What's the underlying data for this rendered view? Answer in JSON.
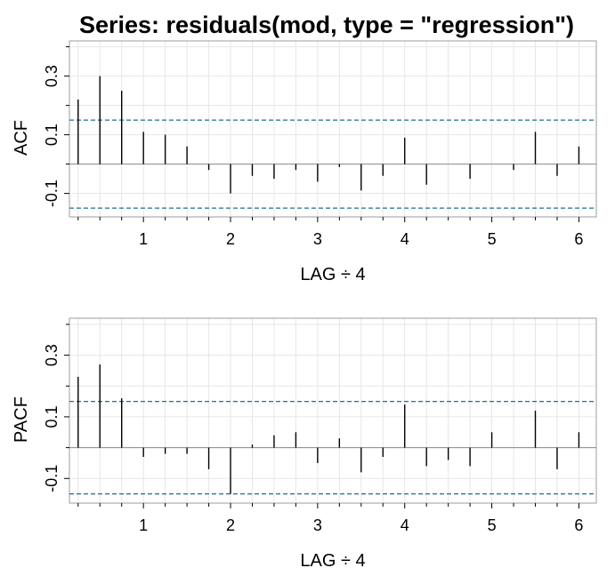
{
  "title": "Series:  residuals(mod, type = \"regression\")",
  "colors": {
    "background": "#ffffff",
    "grid": "#e6e6e6",
    "frame": "#9e9e9e",
    "zero_line": "#8a8a8a",
    "bar": "#000000",
    "confidence_line": "#1f6e8c"
  },
  "chart_data": [
    {
      "type": "bar",
      "ylabel": "ACF",
      "xlabel": "LAG ÷ 4",
      "xlim": [
        0.15,
        6.2
      ],
      "ylim": [
        -0.18,
        0.42
      ],
      "x_ticks": [
        "1",
        "2",
        "3",
        "4",
        "5",
        "6"
      ],
      "y_ticks": [
        "-0.1",
        "0.1",
        "0.3"
      ],
      "x_minor_ticks": [
        0.25,
        0.5,
        0.75,
        1.25,
        1.5,
        1.75,
        2.25,
        2.5,
        2.75,
        3.25,
        3.5,
        3.75,
        4.25,
        4.5,
        4.75,
        5.25,
        5.5,
        5.75
      ],
      "y_minor_ticks": [
        0.0,
        0.2,
        0.4
      ],
      "grid": true,
      "confidence_band": [
        -0.15,
        0.15
      ],
      "x": [
        0.25,
        0.5,
        0.75,
        1.0,
        1.25,
        1.5,
        1.75,
        2.0,
        2.25,
        2.5,
        2.75,
        3.0,
        3.25,
        3.5,
        3.75,
        4.0,
        4.25,
        4.5,
        4.75,
        5.0,
        5.25,
        5.5,
        5.75,
        6.0
      ],
      "values": [
        0.22,
        0.3,
        0.25,
        0.11,
        0.1,
        0.06,
        -0.02,
        -0.1,
        -0.04,
        -0.05,
        -0.02,
        -0.06,
        -0.01,
        -0.09,
        -0.04,
        0.09,
        -0.07,
        0.0,
        -0.05,
        0.0,
        -0.02,
        0.11,
        -0.04,
        0.06
      ]
    },
    {
      "type": "bar",
      "ylabel": "PACF",
      "xlabel": "LAG ÷ 4",
      "xlim": [
        0.15,
        6.2
      ],
      "ylim": [
        -0.18,
        0.42
      ],
      "x_ticks": [
        "1",
        "2",
        "3",
        "4",
        "5",
        "6"
      ],
      "y_ticks": [
        "-0.1",
        "0.1",
        "0.3"
      ],
      "x_minor_ticks": [
        0.25,
        0.5,
        0.75,
        1.25,
        1.5,
        1.75,
        2.25,
        2.5,
        2.75,
        3.25,
        3.5,
        3.75,
        4.25,
        4.5,
        4.75,
        5.25,
        5.5,
        5.75
      ],
      "y_minor_ticks": [
        0.0,
        0.2,
        0.4
      ],
      "grid": true,
      "confidence_band": [
        -0.15,
        0.15
      ],
      "x": [
        0.25,
        0.5,
        0.75,
        1.0,
        1.25,
        1.5,
        1.75,
        2.0,
        2.25,
        2.5,
        2.75,
        3.0,
        3.25,
        3.5,
        3.75,
        4.0,
        4.25,
        4.5,
        4.75,
        5.0,
        5.25,
        5.5,
        5.75,
        6.0
      ],
      "values": [
        0.23,
        0.27,
        0.16,
        -0.03,
        -0.02,
        -0.02,
        -0.07,
        -0.15,
        0.01,
        0.04,
        0.05,
        -0.05,
        0.03,
        -0.08,
        -0.03,
        0.14,
        -0.06,
        -0.04,
        -0.06,
        0.05,
        0.0,
        0.12,
        -0.07,
        0.05
      ]
    }
  ]
}
